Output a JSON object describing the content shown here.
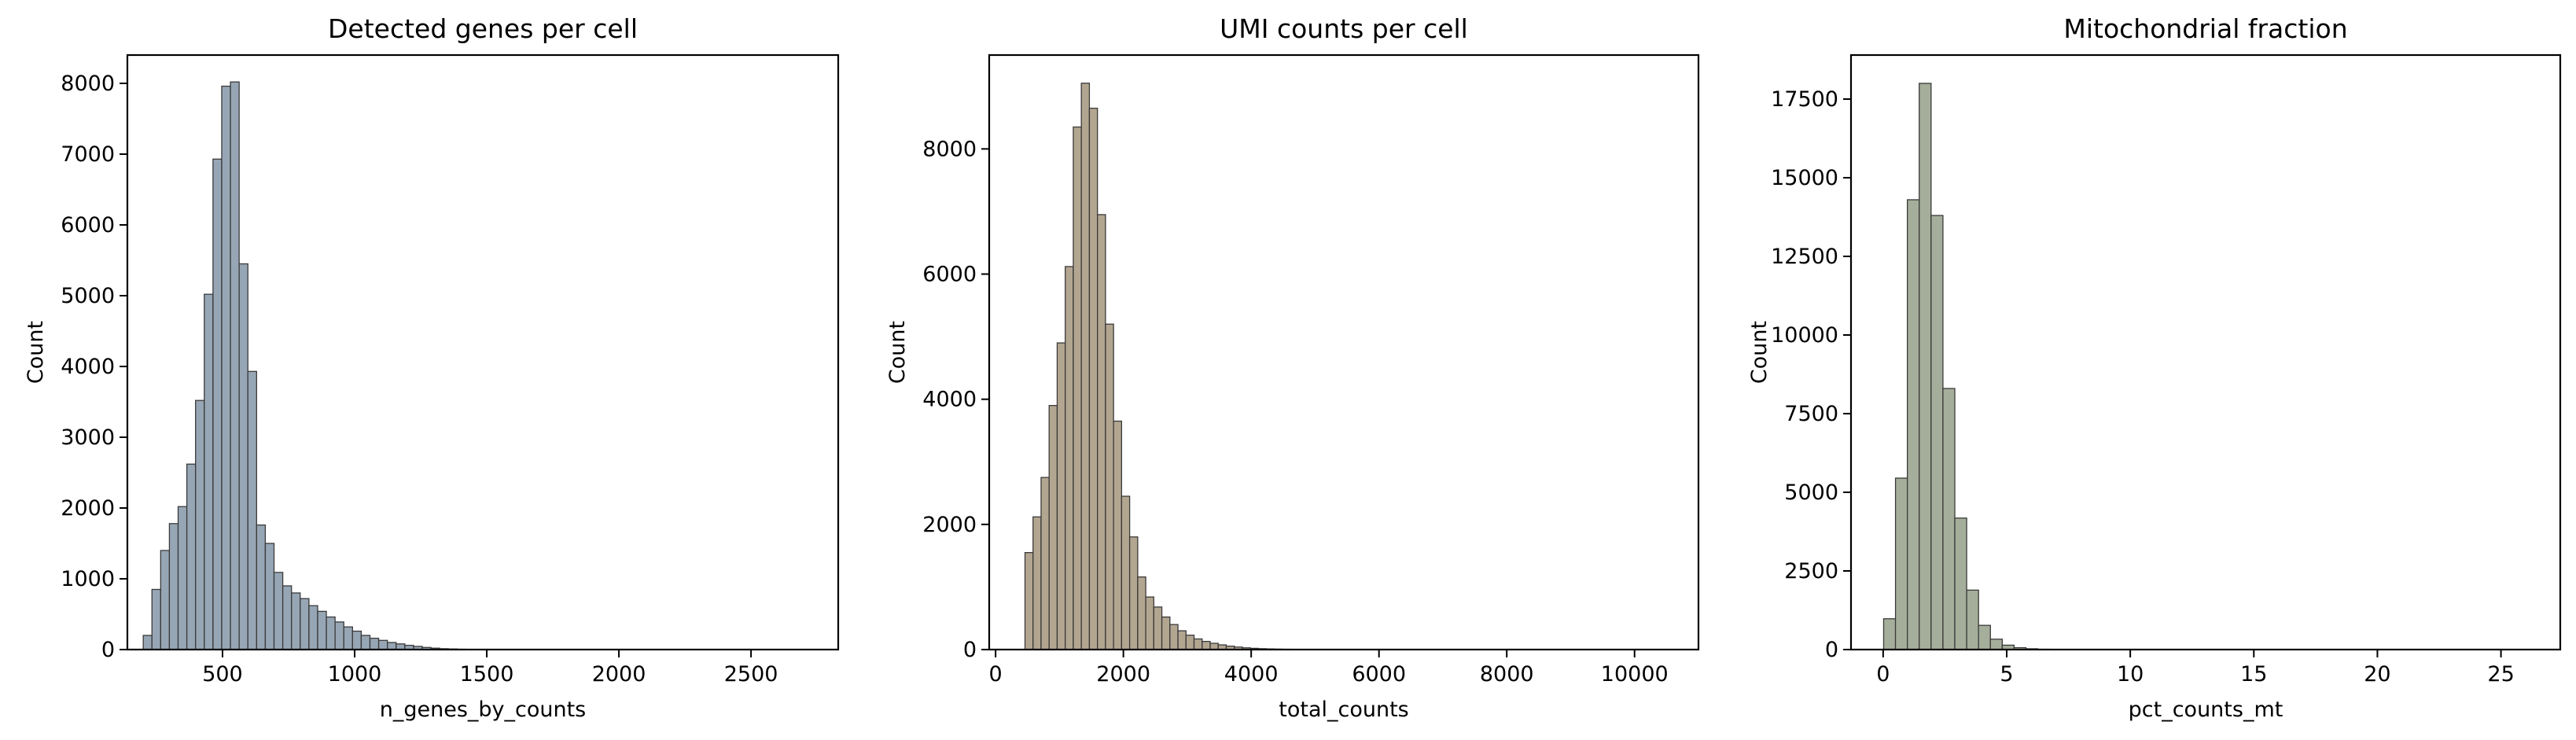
{
  "chart_data": [
    {
      "type": "bar",
      "title": "Detected genes per cell",
      "xlabel": "n_genes_by_counts",
      "ylabel": "Count",
      "color": "#97a6b5",
      "xlim": [
        140,
        2830
      ],
      "ylim": [
        0,
        8400
      ],
      "xticks": [
        500,
        1000,
        1500,
        2000,
        2500
      ],
      "yticks": [
        0,
        1000,
        2000,
        3000,
        4000,
        5000,
        6000,
        7000,
        8000
      ],
      "bin_start": 200,
      "bin_width": 33,
      "values": [
        200,
        850,
        1400,
        1780,
        2020,
        2620,
        3520,
        5020,
        6930,
        7960,
        8020,
        5450,
        3930,
        1760,
        1500,
        1090,
        900,
        800,
        720,
        620,
        540,
        460,
        390,
        320,
        260,
        200,
        160,
        130,
        100,
        80,
        60,
        45,
        30,
        20,
        12,
        8,
        5,
        3,
        2,
        1,
        1,
        1
      ]
    },
    {
      "type": "bar",
      "title": "UMI counts per cell",
      "xlabel": "total_counts",
      "ylabel": "Count",
      "color": "#b3a691",
      "xlim": [
        -100,
        11000
      ],
      "ylim": [
        0,
        9500
      ],
      "xticks": [
        0,
        2000,
        4000,
        6000,
        8000,
        10000
      ],
      "yticks": [
        0,
        2000,
        4000,
        6000,
        8000
      ],
      "bin_start": 460,
      "bin_width": 126,
      "values": [
        1550,
        2120,
        2750,
        3900,
        4900,
        6120,
        8350,
        9050,
        8650,
        6950,
        5200,
        3650,
        2450,
        1800,
        1160,
        840,
        680,
        520,
        400,
        300,
        230,
        170,
        130,
        100,
        75,
        55,
        40,
        28,
        20,
        14,
        10,
        7,
        5,
        3,
        2,
        2,
        1,
        1,
        1,
        1
      ]
    },
    {
      "type": "bar",
      "title": "Mitochondrial fraction",
      "xlabel": "pct_counts_mt",
      "ylabel": "Count",
      "color": "#a5ae9a",
      "xlim": [
        -1.3,
        27.4
      ],
      "ylim": [
        0,
        18900
      ],
      "xticks": [
        0,
        5,
        10,
        15,
        20,
        25
      ],
      "yticks": [
        0,
        2500,
        5000,
        7500,
        10000,
        12500,
        15000,
        17500
      ],
      "bin_start": 0.02,
      "bin_width": 0.48,
      "values": [
        980,
        5450,
        14300,
        18000,
        13800,
        8300,
        4180,
        1890,
        770,
        330,
        140,
        60,
        25,
        10,
        5,
        2,
        1
      ]
    }
  ]
}
